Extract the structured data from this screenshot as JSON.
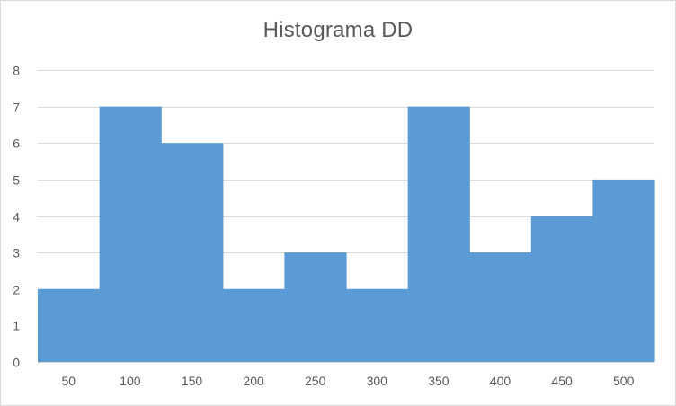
{
  "chart_data": {
    "type": "bar",
    "title": "Histograma DD",
    "xlabel": "",
    "ylabel": "",
    "categories": [
      "50",
      "100",
      "150",
      "200",
      "250",
      "300",
      "350",
      "400",
      "450",
      "500"
    ],
    "values": [
      2,
      7,
      6,
      2,
      3,
      2,
      7,
      3,
      4,
      5
    ],
    "ylim": [
      0,
      8
    ],
    "yticks": [
      "0",
      "1",
      "2",
      "3",
      "4",
      "5",
      "6",
      "7",
      "8"
    ],
    "grid": true,
    "legend": "none",
    "bar_gap": 0,
    "colors": {
      "bar": "#5b9bd5",
      "grid": "#d9d9d9",
      "text": "#595959"
    }
  }
}
